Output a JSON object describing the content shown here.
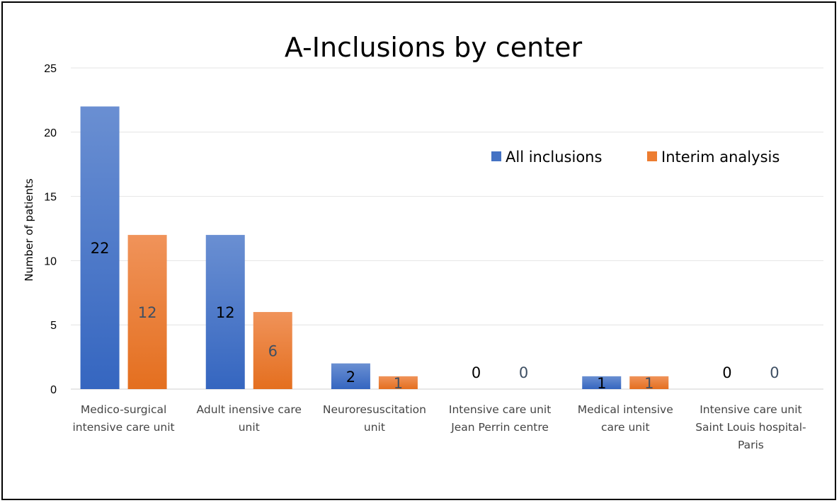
{
  "chart_data": {
    "type": "bar",
    "title": "A-Inclusions by center",
    "ylabel": "Number of patients",
    "xlabel": "",
    "ylim": [
      0,
      25
    ],
    "yticks": [
      0,
      5,
      10,
      15,
      20,
      25
    ],
    "grid": true,
    "legend_position": "top-right",
    "categories": [
      [
        "Medico-surgical",
        "intensive care unit"
      ],
      [
        "Adult inensive care",
        "unit"
      ],
      [
        "Neuroresuscitation",
        "unit"
      ],
      [
        "Intensive care unit",
        "Jean Perrin centre"
      ],
      [
        "Medical intensive",
        "care unit"
      ],
      [
        "Intensive care unit",
        "Saint Louis hospital-",
        "Paris"
      ]
    ],
    "series": [
      {
        "name": "All inclusions",
        "values": [
          22,
          12,
          2,
          0,
          1,
          0
        ],
        "color": "#4472c4"
      },
      {
        "name": "Interim analysis",
        "values": [
          12,
          6,
          1,
          0,
          1,
          0
        ],
        "color": "#ed7d31"
      }
    ]
  }
}
